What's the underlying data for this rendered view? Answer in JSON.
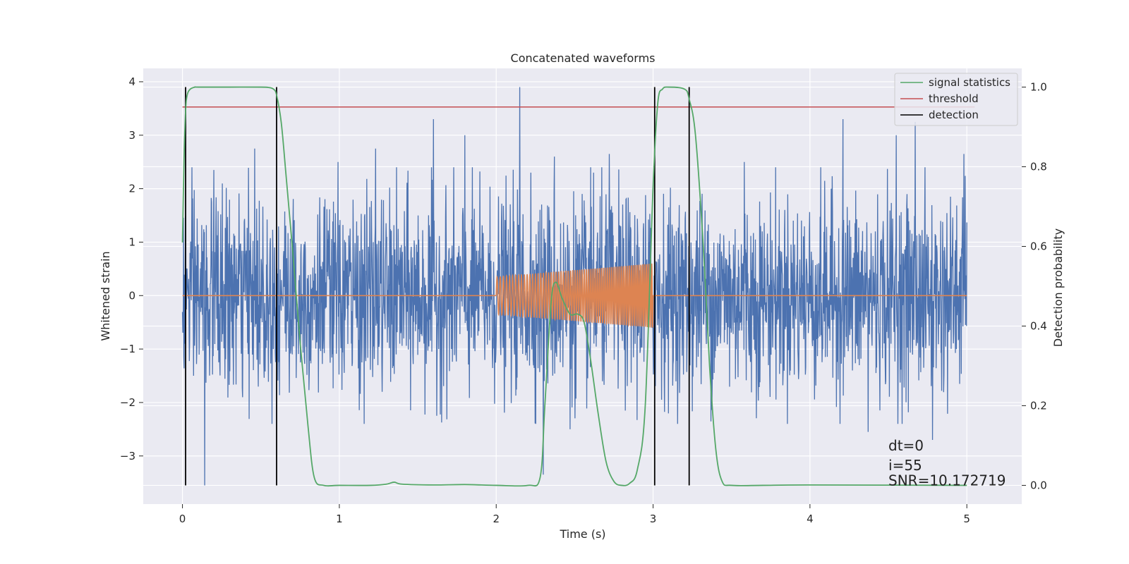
{
  "chart_data": {
    "type": "line",
    "title": "Concatenated waveforms",
    "xlabel": "Time (s)",
    "ylabel": "Whitened strain",
    "ylabel_right": "Detection probability",
    "xlim": [
      -0.25,
      5.35
    ],
    "ylim": [
      -3.9,
      4.25
    ],
    "ylim_right": [
      -0.047,
      1.047
    ],
    "x_ticks": [
      0,
      1,
      2,
      3,
      4,
      5
    ],
    "y_ticks": [
      -3,
      -2,
      -1,
      0,
      1,
      2,
      3,
      4
    ],
    "y_ticks_right": [
      0.0,
      0.2,
      0.4,
      0.6,
      0.8,
      1.0
    ],
    "x_tick_labels": [
      "0",
      "1",
      "2",
      "3",
      "4",
      "5"
    ],
    "y_tick_labels": [
      "−3",
      "−2",
      "−1",
      "0",
      "1",
      "2",
      "3",
      "4"
    ],
    "y_tick_labels_right": [
      "0.0",
      "0.2",
      "0.4",
      "0.6",
      "0.8",
      "1.0"
    ],
    "grid": true,
    "legend_position": "top-right",
    "series": [
      {
        "name": "",
        "axis": "left",
        "color": "#4C72B0",
        "style": "noise",
        "x_range": [
          0,
          5
        ],
        "typical_amplitude": 0.9,
        "peaks": [
          [
            0.07,
            -1.5
          ],
          [
            0.14,
            -3.55
          ],
          [
            0.2,
            2.35
          ],
          [
            0.46,
            2.75
          ],
          [
            0.99,
            2.5
          ],
          [
            1.23,
            2.75
          ],
          [
            1.6,
            3.3
          ],
          [
            1.8,
            3.0
          ],
          [
            2.15,
            3.9
          ],
          [
            2.22,
            2.3
          ],
          [
            2.3,
            -3.35
          ],
          [
            2.37,
            2.6
          ],
          [
            2.47,
            -2.5
          ],
          [
            2.62,
            2.3
          ],
          [
            2.72,
            2.65
          ],
          [
            3.58,
            2.5
          ],
          [
            4.21,
            3.3
          ],
          [
            4.37,
            -2.55
          ],
          [
            4.55,
            3.0
          ],
          [
            4.67,
            3.25
          ],
          [
            4.78,
            -2.7
          ],
          [
            4.98,
            2.65
          ]
        ]
      },
      {
        "name": "",
        "axis": "left",
        "color": "#DD8452",
        "style": "chirp",
        "x_range": [
          0,
          5
        ],
        "chirp_start": 2.0,
        "chirp_end": 3.0,
        "amplitude_start": 0.35,
        "amplitude_end": 0.6
      },
      {
        "name": "signal statistics",
        "axis": "right",
        "color": "#55A868",
        "x": [
          0.0,
          0.01,
          0.02,
          0.03,
          0.05,
          0.08,
          0.1,
          0.3,
          0.5,
          0.55,
          0.58,
          0.6,
          0.63,
          0.66,
          0.7,
          0.75,
          0.8,
          0.84,
          0.9,
          1.0,
          1.2,
          1.3,
          1.35,
          1.4,
          1.6,
          1.8,
          2.0,
          2.2,
          2.28,
          2.31,
          2.35,
          2.38,
          2.42,
          2.47,
          2.52,
          2.56,
          2.6,
          2.65,
          2.7,
          2.75,
          2.8,
          2.85,
          2.9,
          2.95,
          3.0,
          3.03,
          3.06,
          3.1,
          3.2,
          3.23,
          3.27,
          3.32,
          3.36,
          3.4,
          3.44,
          3.5,
          3.7,
          4.0,
          5.0
        ],
        "values": [
          0.61,
          0.82,
          0.94,
          0.98,
          0.995,
          1.0,
          1.0,
          1.0,
          1.0,
          0.999,
          0.995,
          0.98,
          0.91,
          0.78,
          0.6,
          0.36,
          0.15,
          0.02,
          0.0,
          0.0,
          0.0,
          0.003,
          0.008,
          0.003,
          0.001,
          0.002,
          0.0,
          0.0,
          0.02,
          0.2,
          0.46,
          0.51,
          0.47,
          0.43,
          0.43,
          0.41,
          0.32,
          0.18,
          0.06,
          0.01,
          0.0,
          0.005,
          0.04,
          0.2,
          0.75,
          0.96,
          0.995,
          1.0,
          0.995,
          0.97,
          0.88,
          0.6,
          0.3,
          0.09,
          0.01,
          0.0,
          0.0,
          0.001,
          0.0
        ]
      },
      {
        "name": "threshold",
        "axis": "right",
        "color": "#C44E52",
        "x": [
          0,
          5.05
        ],
        "values": [
          0.95,
          0.95
        ]
      },
      {
        "name": "detection",
        "axis": "right",
        "color": "#000000",
        "style": "vertical-lines",
        "x": [
          0.02,
          0.6,
          3.01,
          3.23
        ],
        "y_range": [
          0.0,
          1.0
        ]
      }
    ],
    "annotations": [
      {
        "text": "dt=0",
        "x": 4.5,
        "y": -2.9
      },
      {
        "text": "i=55",
        "x": 4.5,
        "y": -3.27
      },
      {
        "text": "SNR=10.172719",
        "x": 4.5,
        "y": -3.55
      }
    ]
  }
}
